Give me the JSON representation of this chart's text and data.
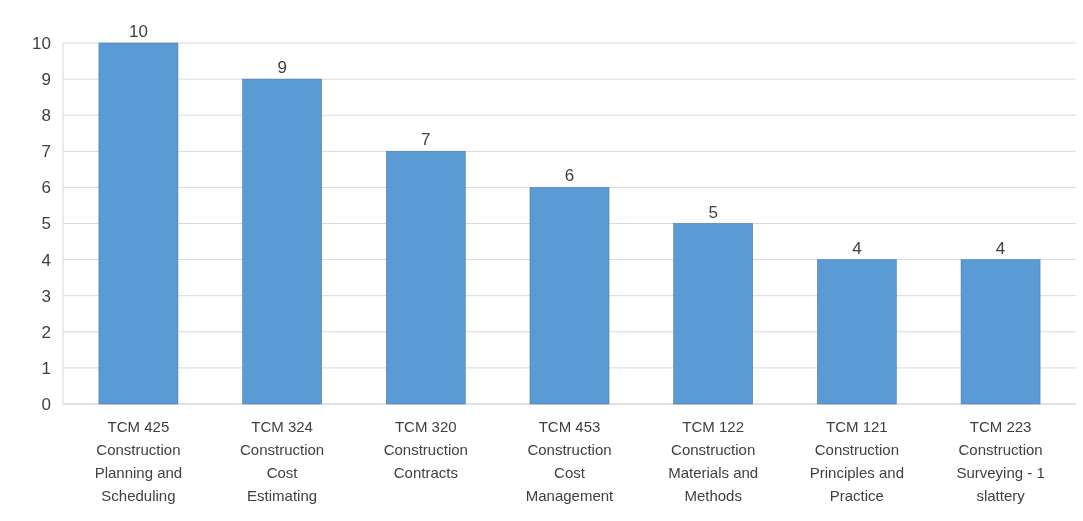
{
  "chart_data": {
    "type": "bar",
    "categories": [
      "TCM 425 Construction Planning and Scheduling",
      "TCM 324 Construction Cost Estimating",
      "TCM 320 Construction Contracts",
      "TCM 453 Construction Cost Management",
      "TCM 122 Construction Materials and Methods",
      "TCM 121 Construction Principles and Practice",
      "TCM 223 Construction Surveying - 1 slattery"
    ],
    "values": [
      10,
      9,
      7,
      6,
      5,
      4,
      4
    ],
    "color": "#5b9bd5",
    "ylim": [
      0,
      10
    ],
    "yticks": [
      0,
      1,
      2,
      3,
      4,
      5,
      6,
      7,
      8,
      9,
      10
    ],
    "grid": "y",
    "data_labels": true
  }
}
